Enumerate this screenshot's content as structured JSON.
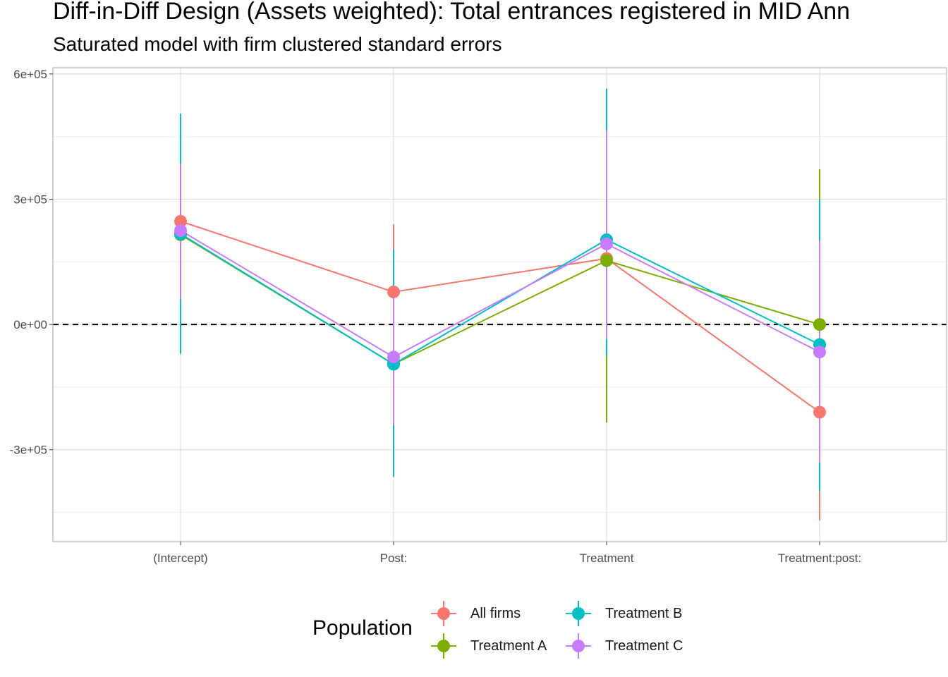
{
  "chart_data": {
    "type": "line",
    "title": "Diff-in-Diff Design (Assets weighted): Total entrances registered in MID Ann",
    "subtitle": "Saturated model with firm clustered standard errors",
    "categories": [
      "(Intercept)",
      "Post:",
      "Treatment",
      "Treatment:post:"
    ],
    "ylim": [
      -520000,
      615000
    ],
    "y_ticks": [
      -300000,
      0,
      300000,
      600000
    ],
    "y_tick_labels": [
      "-3e+05",
      "0e+00",
      "3e+05",
      "6e+05"
    ],
    "reference_line": {
      "y": 0,
      "style": "dashed"
    },
    "grid": true,
    "legend": {
      "title": "Population",
      "position": "bottom"
    },
    "series": [
      {
        "name": "All firms",
        "color": "#F8766D",
        "values": [
          247000,
          78000,
          158000,
          -210000
        ],
        "lower": [
          70000,
          -40000,
          -70000,
          -470000
        ],
        "upper": [
          380000,
          240000,
          380000,
          200000
        ]
      },
      {
        "name": "Treatment A",
        "color": "#7CAE00",
        "values": [
          215000,
          -95000,
          153000,
          0
        ],
        "lower": [
          -10000,
          -200000,
          -235000,
          -150000
        ],
        "upper": [
          430000,
          70000,
          540000,
          372000
        ]
      },
      {
        "name": "Treatment B",
        "color": "#00BFC4",
        "values": [
          217000,
          -95000,
          203000,
          -48000
        ],
        "lower": [
          -70000,
          -365000,
          -75000,
          -400000
        ],
        "upper": [
          505000,
          180000,
          565000,
          300000
        ]
      },
      {
        "name": "Treatment C",
        "color": "#C77CFF",
        "values": [
          225000,
          -78000,
          193000,
          -66000
        ],
        "lower": [
          60000,
          -240000,
          -35000,
          -330000
        ],
        "upper": [
          385000,
          90000,
          465000,
          200000
        ]
      }
    ]
  }
}
